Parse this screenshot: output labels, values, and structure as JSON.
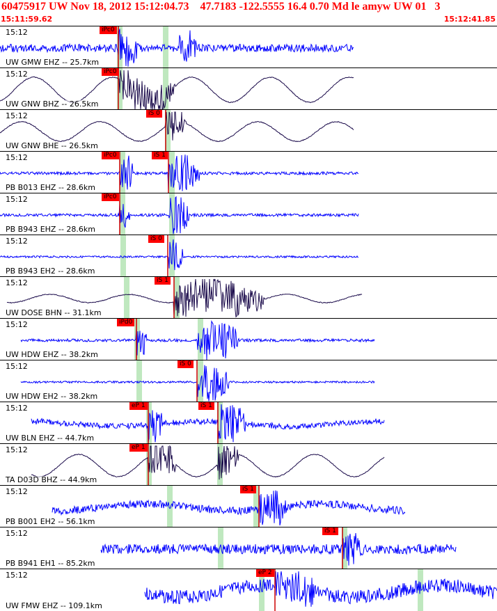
{
  "header": {
    "title": "60475917 UW Nov 18, 2012 15:12:04.73    47.7183 -122.5555 16.4 0.70 Md le amyw UW 01   3",
    "start_time": "15:11:59.62",
    "end_time": "15:12:41.85"
  },
  "colors": {
    "header_text": "#ff0000",
    "trace_blue": "#0000ff",
    "trace_dark": "#1a0a4a",
    "pick_box": "#ff0000",
    "pick_text": "#000000",
    "predicted_band": "#bfe8bf",
    "grid_line": "#000000"
  },
  "panels": [
    {
      "time_label": "15:12",
      "label": "UW GMW EHZ -- 25.7km",
      "trace": "blue",
      "picks": [
        {
          "label": "iPc0",
          "color": "red"
        }
      ]
    },
    {
      "time_label": "15:12",
      "label": "UW GNW BHZ -- 26.5km",
      "trace": "dark",
      "picks": [
        {
          "label": "iPc0",
          "color": "red"
        }
      ]
    },
    {
      "time_label": "15:12",
      "label": "UW GNW BHE -- 26.5km",
      "trace": "dark",
      "picks": [
        {
          "label": "iS 0",
          "color": "red"
        }
      ]
    },
    {
      "time_label": "15:12",
      "label": "PB B013 EHZ -- 28.6km",
      "trace": "blue",
      "picks": [
        {
          "label": "iPc0",
          "color": "red"
        },
        {
          "label": "iS 1",
          "color": "red"
        }
      ]
    },
    {
      "time_label": "15:12",
      "label": "PB B943 EHZ -- 28.6km",
      "trace": "blue",
      "picks": [
        {
          "label": "iPc0",
          "color": "red"
        }
      ]
    },
    {
      "time_label": "15:12",
      "label": "PB B943 EH2 -- 28.6km",
      "trace": "blue",
      "picks": [
        {
          "label": "iS 0",
          "color": "red"
        }
      ]
    },
    {
      "time_label": "15:12",
      "label": "UW DOSE BHN -- 31.1km",
      "trace": "dark",
      "picks": [
        {
          "label": "iS 1",
          "color": "red"
        }
      ]
    },
    {
      "time_label": "15:12",
      "label": "UW HDW EHZ -- 38.2km",
      "trace": "blue",
      "picks": [
        {
          "label": "iPd0",
          "color": "red"
        }
      ]
    },
    {
      "time_label": "15:12",
      "label": "UW HDW EH2 -- 38.2km",
      "trace": "blue",
      "picks": [
        {
          "label": "iS 0",
          "color": "red"
        }
      ]
    },
    {
      "time_label": "15:12",
      "label": "UW BLN EHZ -- 44.7km",
      "trace": "blue",
      "picks": [
        {
          "label": "eP 1",
          "color": "red"
        },
        {
          "label": "iS 1",
          "color": "red"
        }
      ]
    },
    {
      "time_label": "15:12",
      "label": "TA D03D BHZ -- 44.9km",
      "trace": "dark",
      "picks": [
        {
          "label": "eP 1",
          "color": "red"
        }
      ]
    },
    {
      "time_label": "15:12",
      "label": "PB B001 EH2 -- 56.1km",
      "trace": "blue",
      "picks": [
        {
          "label": "iS 1",
          "color": "red"
        }
      ]
    },
    {
      "time_label": "15:12",
      "label": "PB B941 EH1 -- 85.2km",
      "trace": "blue",
      "picks": [
        {
          "label": "iS 1",
          "color": "red"
        }
      ]
    },
    {
      "time_label": "15:12",
      "label": "UW FMW EHZ -- 109.1km",
      "trace": "blue",
      "picks": [
        {
          "label": "eP 2",
          "color": "red"
        }
      ]
    }
  ]
}
